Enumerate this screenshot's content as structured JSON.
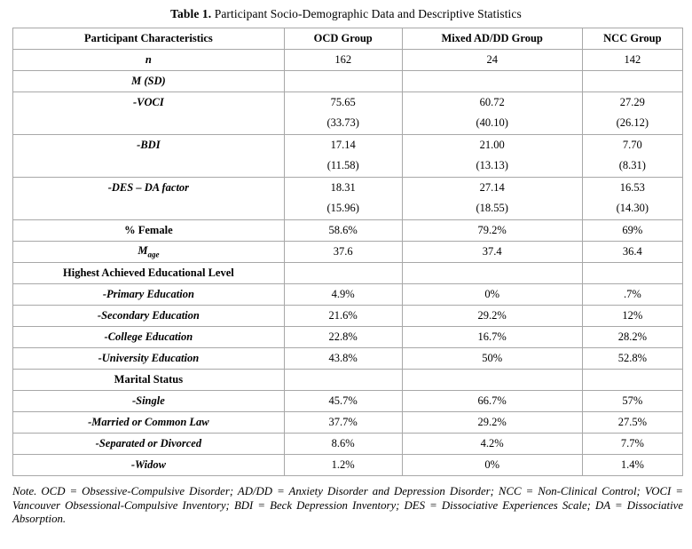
{
  "title": {
    "prefix": "Table 1.",
    "text": " Participant Socio-Demographic Data and Descriptive Statistics"
  },
  "table": {
    "headers": [
      "Participant Characteristics",
      "OCD Group",
      "Mixed AD/DD Group",
      "NCC Group"
    ],
    "rows": [
      {
        "label": "n",
        "style": "bold-italic",
        "values": [
          "162",
          "24",
          "142"
        ]
      },
      {
        "label": "M (SD)",
        "style": "bold-italic",
        "values": [
          "",
          "",
          ""
        ]
      },
      {
        "label": "-VOCI",
        "style": "bold-italic",
        "values": [
          "75.65",
          "60.72",
          "27.29"
        ],
        "sd": [
          "(33.73)",
          "(40.10)",
          "(26.12)"
        ]
      },
      {
        "label": "-BDI",
        "style": "bold-italic",
        "values": [
          "17.14",
          "21.00",
          "7.70"
        ],
        "sd": [
          "(11.58)",
          "(13.13)",
          "(8.31)"
        ]
      },
      {
        "label": "-DES – DA factor",
        "style": "bold-italic",
        "values": [
          "18.31",
          "27.14",
          "16.53"
        ],
        "sd": [
          "(15.96)",
          "(18.55)",
          "(14.30)"
        ]
      },
      {
        "label": "% Female",
        "style": "bold",
        "values": [
          "58.6%",
          "79.2%",
          "69%"
        ]
      },
      {
        "label": "M",
        "label_sub": "age",
        "style": "bold-italic",
        "values": [
          "37.6",
          "37.4",
          "36.4"
        ]
      },
      {
        "label": "Highest Achieved Educational Level",
        "style": "bold",
        "values": [
          "",
          "",
          ""
        ]
      },
      {
        "label": "-Primary Education",
        "style": "bold-italic",
        "values": [
          "4.9%",
          "0%",
          ".7%"
        ]
      },
      {
        "label": "-Secondary Education",
        "style": "bold-italic",
        "values": [
          "21.6%",
          "29.2%",
          "12%"
        ]
      },
      {
        "label": "-College Education",
        "style": "bold-italic",
        "values": [
          "22.8%",
          "16.7%",
          "28.2%"
        ]
      },
      {
        "label": "-University Education",
        "style": "bold-italic",
        "values": [
          "43.8%",
          "50%",
          "52.8%"
        ]
      },
      {
        "label": "Marital Status",
        "style": "bold",
        "values": [
          "",
          "",
          ""
        ]
      },
      {
        "label": "-Single",
        "style": "bold-italic",
        "values": [
          "45.7%",
          "66.7%",
          "57%"
        ]
      },
      {
        "label": "-Married or Common Law",
        "style": "bold-italic",
        "values": [
          "37.7%",
          "29.2%",
          "27.5%"
        ]
      },
      {
        "label": "-Separated or Divorced",
        "style": "bold-italic",
        "values": [
          "8.6%",
          "4.2%",
          "7.7%"
        ]
      },
      {
        "label": "-Widow",
        "style": "bold-italic",
        "values": [
          "1.2%",
          "0%",
          "1.4%"
        ]
      }
    ]
  },
  "note": "Note. OCD = Obsessive-Compulsive Disorder; AD/DD = Anxiety Disorder and Depression Disorder; NCC = Non-Clinical Control; VOCI = Vancouver Obsessional-Compulsive Inventory; BDI = Beck Depression Inventory; DES = Dissociative Experiences Scale; DA = Dissociative Absorption."
}
